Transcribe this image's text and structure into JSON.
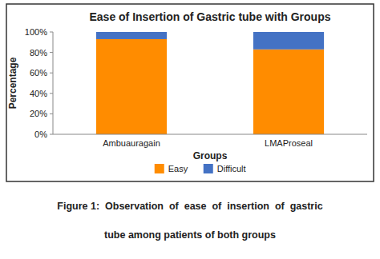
{
  "chart_data": {
    "type": "bar",
    "stacked": true,
    "title": "Ease of Insertion of Gastric tube with Groups",
    "xlabel": "Groups",
    "ylabel": "Percentage",
    "categories": [
      "Ambuauragain",
      "LMAProseal"
    ],
    "series": [
      {
        "name": "Easy",
        "color": "#FF8C00",
        "values": [
          93,
          83
        ]
      },
      {
        "name": "Difficult",
        "color": "#4472C4",
        "values": [
          7,
          17
        ]
      }
    ],
    "ylim": [
      0,
      100
    ],
    "yticks": [
      {
        "value": 0,
        "label": "0%"
      },
      {
        "value": 20,
        "label": "20%"
      },
      {
        "value": 40,
        "label": "40%"
      },
      {
        "value": 60,
        "label": "60%"
      },
      {
        "value": 80,
        "label": "80%"
      },
      {
        "value": 100,
        "label": "100%"
      }
    ],
    "grid": false,
    "legend": "bottom",
    "annotations": [
      "Figure 1:  Observation  of  ease  of  insertion  of  gastric",
      "tube among patients of both groups"
    ]
  }
}
